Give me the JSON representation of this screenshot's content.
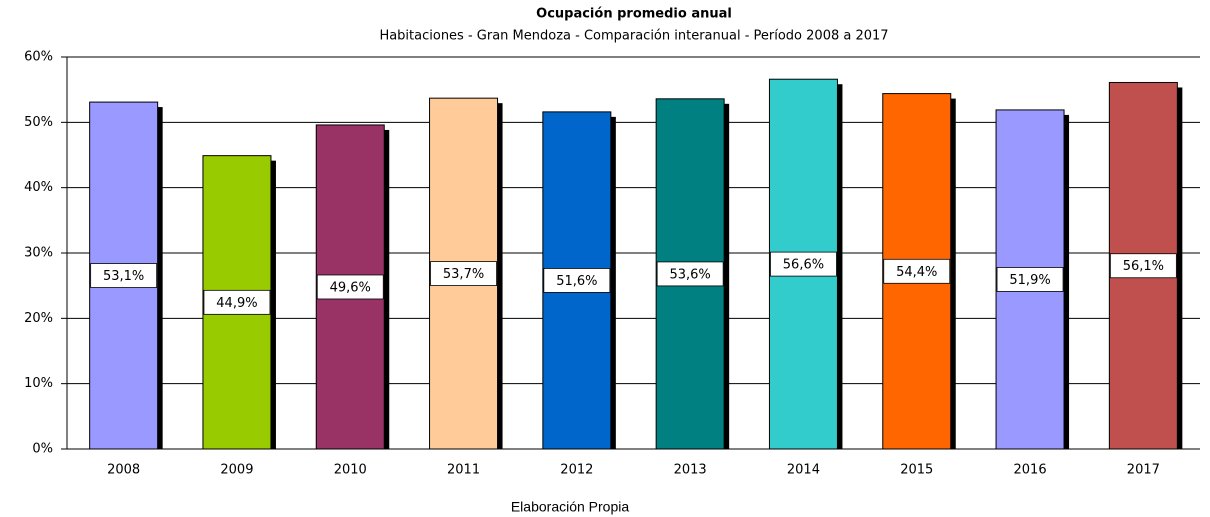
{
  "chart_data": {
    "type": "bar",
    "title": "Ocupación promedio anual",
    "subtitle": "Habitaciones - Gran Mendoza - Comparación interanual  - Período 2008 a 2017",
    "caption": "Elaboración Propia",
    "categories": [
      "2008",
      "2009",
      "2010",
      "2011",
      "2012",
      "2013",
      "2014",
      "2015",
      "2016",
      "2017"
    ],
    "values": [
      53.1,
      44.9,
      49.6,
      53.7,
      51.6,
      53.6,
      56.6,
      54.4,
      51.9,
      56.1
    ],
    "value_labels": [
      "53,1%",
      "44,9%",
      "49,6%",
      "53,7%",
      "51,6%",
      "53,6%",
      "56,6%",
      "54,4%",
      "51,9%",
      "56,1%"
    ],
    "colors": [
      "#9999ff",
      "#99cc00",
      "#993366",
      "#ffcc99",
      "#0066cc",
      "#008080",
      "#33cccc",
      "#ff6600",
      "#9999ff",
      "#c0504d"
    ],
    "ylim": [
      0,
      60
    ],
    "yticks": [
      {
        "value": 0,
        "label": "0%"
      },
      {
        "value": 10,
        "label": "10%"
      },
      {
        "value": 20,
        "label": "20%"
      },
      {
        "value": 30,
        "label": "30%"
      },
      {
        "value": 40,
        "label": "40%"
      },
      {
        "value": 50,
        "label": "50%"
      },
      {
        "value": 60,
        "label": "60%"
      }
    ],
    "grid": true
  }
}
